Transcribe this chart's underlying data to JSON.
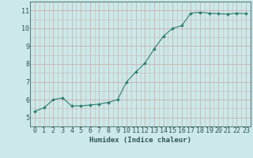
{
  "x": [
    0,
    1,
    2,
    3,
    4,
    5,
    6,
    7,
    8,
    9,
    10,
    11,
    12,
    13,
    14,
    15,
    16,
    17,
    18,
    19,
    20,
    21,
    22,
    23
  ],
  "y": [
    5.35,
    5.55,
    6.0,
    6.1,
    5.65,
    5.65,
    5.7,
    5.75,
    5.85,
    6.0,
    7.0,
    7.55,
    8.05,
    8.85,
    9.55,
    10.0,
    10.15,
    10.85,
    10.9,
    10.85,
    10.82,
    10.8,
    10.85,
    10.82
  ],
  "line_color": "#2e7d6e",
  "marker": "D",
  "marker_size": 2.0,
  "bg_color": "#cce8e8",
  "grid_color_major": "#b8cccc",
  "grid_color_minor": "#ccdede",
  "xlabel": "Humidex (Indice chaleur)",
  "xlabel_fontsize": 6.5,
  "tick_fontsize": 6.0,
  "ylim": [
    4.75,
    11.5
  ],
  "xlim": [
    -0.5,
    23.5
  ],
  "yticks": [
    5,
    6,
    7,
    8,
    9,
    10,
    11
  ],
  "xticks": [
    0,
    1,
    2,
    3,
    4,
    5,
    6,
    7,
    8,
    9,
    10,
    11,
    12,
    13,
    14,
    15,
    16,
    17,
    18,
    19,
    20,
    21,
    22,
    23
  ]
}
